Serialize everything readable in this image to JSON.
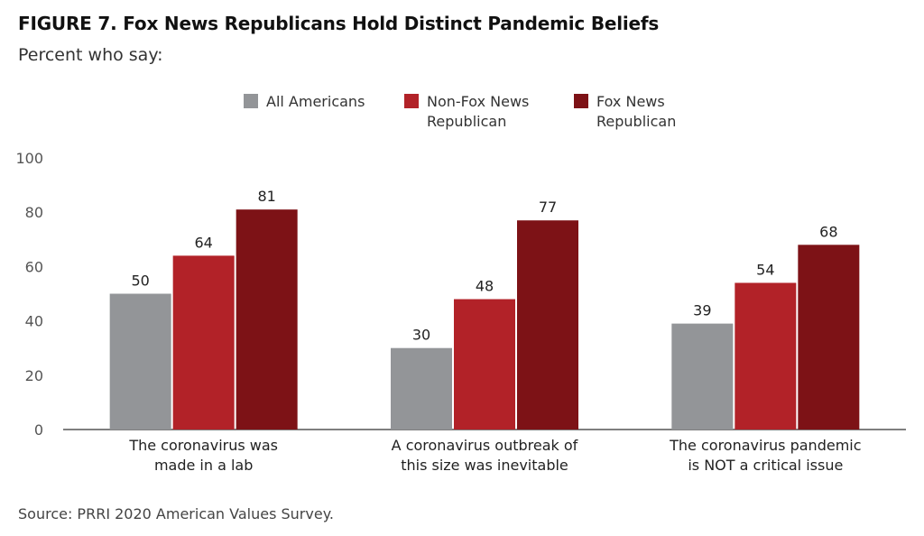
{
  "header": {
    "title": "FIGURE 7. Fox News Republicans Hold Distinct Pandemic Beliefs",
    "subtitle": "Percent who say:"
  },
  "footer": {
    "source": "Source: PRRI 2020 American Values Survey."
  },
  "chart_data": {
    "type": "bar",
    "title": "FIGURE 7. Fox News Republicans Hold Distinct Pandemic Beliefs",
    "subtitle": "Percent who say:",
    "categories": [
      [
        "The coronavirus was",
        "made in a lab"
      ],
      [
        "A coronavirus outbreak of",
        "this size was inevitable"
      ],
      [
        "The coronavirus pandemic",
        "is NOT a critical issue"
      ]
    ],
    "series": [
      {
        "name": "All Americans",
        "color": "#939598",
        "values": [
          50,
          30,
          39
        ]
      },
      {
        "name": "Non-Fox News\nRepublican",
        "color": "#b22228",
        "values": [
          64,
          48,
          54
        ]
      },
      {
        "name": "Fox News\nRepublican",
        "color": "#7d1216",
        "values": [
          81,
          77,
          68
        ]
      }
    ],
    "yticks": [
      0,
      20,
      40,
      60,
      80,
      100
    ],
    "ylim": [
      0,
      100
    ],
    "grid": false,
    "legend_position": "top-center",
    "data_labels": true
  }
}
